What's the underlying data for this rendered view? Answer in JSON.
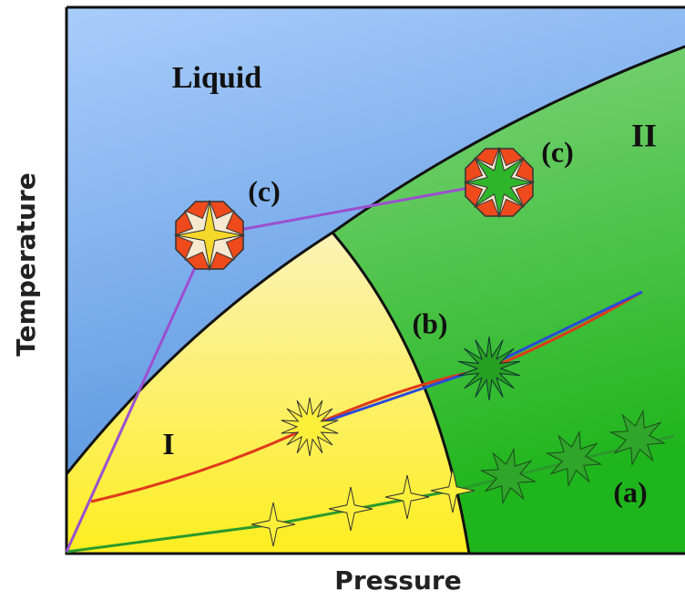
{
  "labels": {
    "liquid": "Liquid",
    "phase_1": "I",
    "phase_2": "II",
    "path_a": "(a)",
    "path_b": "(b)",
    "path_c_left": "(c)",
    "path_c_right": "(c)"
  },
  "axes": {
    "x": "Pressure",
    "y": "Temperature"
  }
}
